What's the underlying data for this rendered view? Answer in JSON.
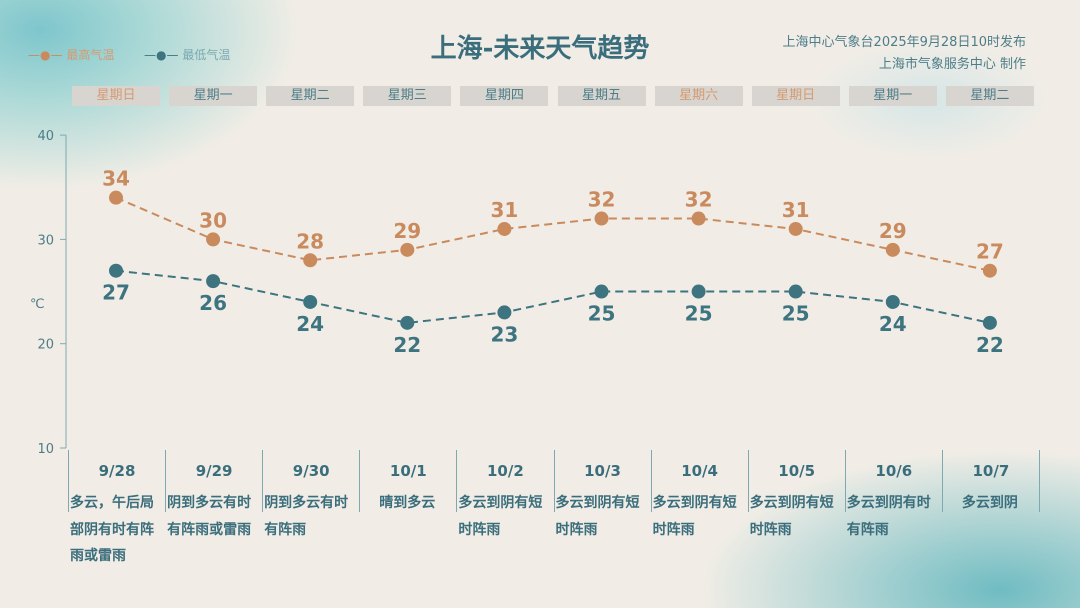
{
  "header": {
    "title": "上海-未来天气趋势",
    "issued": "上海中心气象台2025年9月28日10时发布",
    "producer": "上海市气象服务中心 制作"
  },
  "legend": {
    "high": "最高气温",
    "low": "最低气温"
  },
  "weekdays": [
    "星期日",
    "星期一",
    "星期二",
    "星期三",
    "星期四",
    "星期五",
    "星期六",
    "星期日",
    "星期一",
    "星期二"
  ],
  "weather": [
    "多云，午后局部阴有时有阵雨或雷雨",
    "阴到多云有时有阵雨或雷雨",
    "阴到多云有时有阵雨",
    "晴到多云",
    "多云到阴有短时阵雨",
    "多云到阴有短时阵雨",
    "多云到阴有短时阵雨",
    "多云到阴有短时阵雨",
    "多云到阴有时有阵雨",
    "多云到阴"
  ],
  "chart_data": {
    "type": "line",
    "categories": [
      "9/28",
      "9/29",
      "9/30",
      "10/1",
      "10/2",
      "10/3",
      "10/4",
      "10/5",
      "10/6",
      "10/7"
    ],
    "series": [
      {
        "name": "最高气温",
        "values": [
          34,
          30,
          28,
          29,
          31,
          32,
          32,
          31,
          29,
          27
        ],
        "color": "#c98a5e"
      },
      {
        "name": "最低气温",
        "values": [
          27,
          26,
          24,
          22,
          23,
          25,
          25,
          25,
          24,
          22
        ],
        "color": "#3d7480"
      }
    ],
    "ylabel": "℃",
    "ylim": [
      10,
      40
    ],
    "yticks": [
      "10",
      "20",
      "30",
      "40"
    ],
    "grid": false,
    "legend": "top-left"
  }
}
